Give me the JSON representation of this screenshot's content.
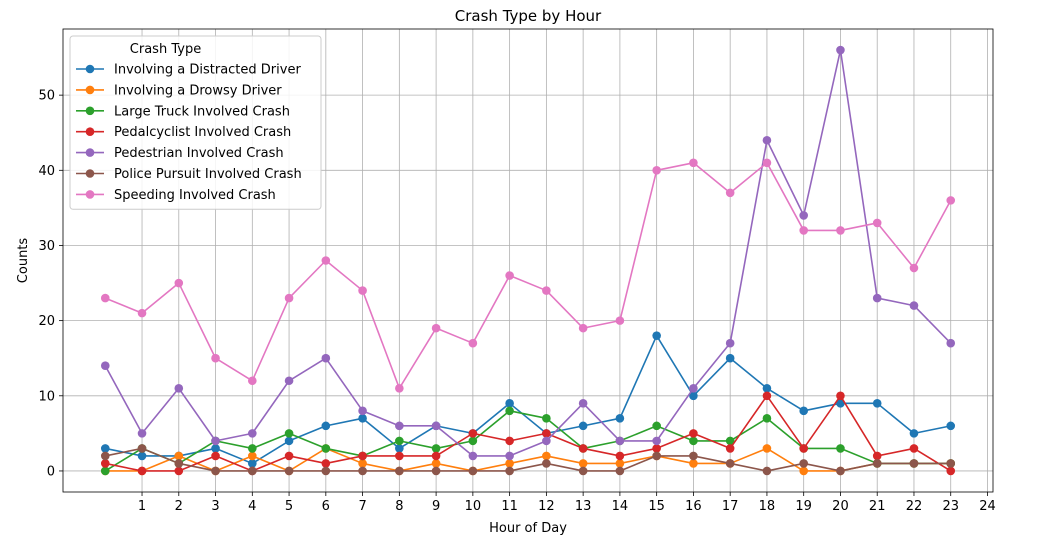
{
  "chart_data": {
    "type": "line",
    "title": "Crash Type by Hour",
    "xlabel": "Hour of Day",
    "ylabel": "Counts",
    "x": [
      0,
      1,
      2,
      3,
      4,
      5,
      6,
      7,
      8,
      9,
      10,
      11,
      12,
      13,
      14,
      15,
      16,
      17,
      18,
      19,
      20,
      21,
      22,
      23
    ],
    "xticks": [
      1,
      2,
      3,
      4,
      5,
      6,
      7,
      8,
      9,
      10,
      11,
      12,
      13,
      14,
      15,
      16,
      17,
      18,
      19,
      20,
      21,
      22,
      23,
      24
    ],
    "yticks": [
      0,
      10,
      20,
      30,
      40,
      50
    ],
    "xlim": [
      -1.15,
      24.15
    ],
    "ylim": [
      -2.8,
      58.8
    ],
    "grid": true,
    "legend": {
      "title": "Crash Type",
      "placement": "top-left"
    },
    "series": [
      {
        "name": "Involving a Distracted Driver",
        "color": "#1f77b4",
        "values": [
          3,
          2,
          2,
          3,
          1,
          4,
          6,
          7,
          3,
          6,
          5,
          9,
          5,
          6,
          7,
          18,
          10,
          15,
          11,
          8,
          9,
          9,
          5,
          6
        ]
      },
      {
        "name": "Involving a Drowsy Driver",
        "color": "#ff7f0e",
        "values": [
          0,
          0,
          2,
          0,
          2,
          0,
          3,
          1,
          0,
          1,
          0,
          1,
          2,
          1,
          1,
          2,
          1,
          1,
          3,
          0,
          0,
          1,
          1,
          1
        ]
      },
      {
        "name": "Large Truck Involved Crash",
        "color": "#2ca02c",
        "values": [
          0,
          3,
          1,
          4,
          3,
          5,
          3,
          2,
          4,
          3,
          4,
          8,
          7,
          3,
          4,
          6,
          4,
          4,
          7,
          3,
          3,
          1,
          1,
          1
        ]
      },
      {
        "name": "Pedalcyclist Involved Crash",
        "color": "#d62728",
        "values": [
          1,
          0,
          0,
          2,
          0,
          2,
          1,
          2,
          2,
          2,
          5,
          4,
          5,
          3,
          2,
          3,
          5,
          3,
          10,
          3,
          10,
          2,
          3,
          0
        ]
      },
      {
        "name": "Pedestrian Involved Crash",
        "color": "#9467bd",
        "values": [
          14,
          5,
          11,
          4,
          5,
          12,
          15,
          8,
          6,
          6,
          2,
          2,
          4,
          9,
          4,
          4,
          11,
          17,
          44,
          34,
          56,
          23,
          22,
          17
        ]
      },
      {
        "name": "Police Pursuit Involved Crash",
        "color": "#8c564b",
        "values": [
          2,
          3,
          1,
          0,
          0,
          0,
          0,
          0,
          0,
          0,
          0,
          0,
          1,
          0,
          0,
          2,
          2,
          1,
          0,
          1,
          0,
          1,
          1,
          1
        ]
      },
      {
        "name": "Speeding Involved Crash",
        "color": "#e377c2",
        "values": [
          23,
          21,
          25,
          15,
          12,
          23,
          28,
          24,
          11,
          19,
          17,
          26,
          24,
          19,
          20,
          40,
          41,
          37,
          41,
          32,
          32,
          33,
          27,
          36
        ]
      }
    ]
  }
}
